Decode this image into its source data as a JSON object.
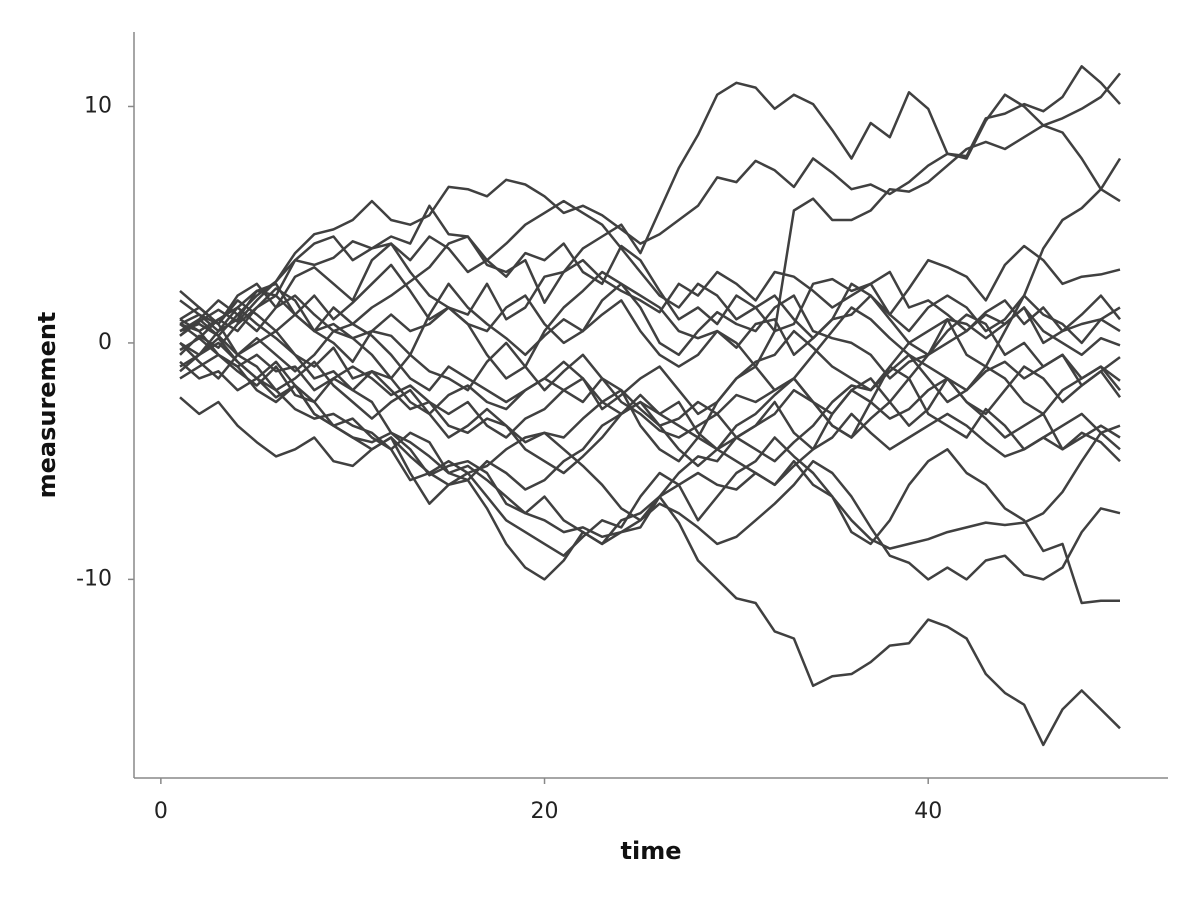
{
  "chart_data": {
    "type": "line",
    "x_label": "time",
    "y_label": "measurement",
    "color": "#404040",
    "xlim": [
      -1.4,
      52.5
    ],
    "xticks": [
      0,
      20,
      40
    ],
    "ylim": [
      -18.4,
      13.15
    ],
    "yticks": [
      -10,
      0,
      10
    ],
    "grid": false,
    "x": [
      1,
      2,
      3,
      4,
      5,
      6,
      7,
      8,
      9,
      10,
      11,
      12,
      13,
      14,
      15,
      16,
      17,
      18,
      19,
      20,
      21,
      22,
      23,
      24,
      25,
      26,
      27,
      28,
      29,
      30,
      31,
      32,
      33,
      34,
      35,
      36,
      37,
      38,
      39,
      40,
      41,
      42,
      43,
      44,
      45,
      46,
      47,
      48,
      49,
      50
    ],
    "series": [
      {
        "values": [
          0.5,
          0.8,
          0.3,
          1.2,
          2.0,
          2.6,
          3.5,
          3.3,
          3.6,
          4.3,
          4.0,
          4.5,
          4.2,
          5.8,
          4.6,
          4.5,
          3.3,
          3.0,
          3.5,
          1.7,
          3.0,
          4.0,
          4.5,
          5.0,
          3.8,
          5.6,
          7.4,
          8.8,
          10.5,
          11.0,
          10.8,
          9.9,
          10.5,
          10.1,
          9.0,
          7.8,
          9.3,
          8.7,
          10.6,
          9.9,
          8.0,
          7.9,
          9.5,
          9.7,
          10.1,
          9.8,
          10.4,
          11.7,
          11.0,
          10.1
        ]
      },
      {
        "values": [
          -1.0,
          -0.5,
          0.2,
          -0.8,
          -1.5,
          -2.3,
          -1.8,
          -3.0,
          -3.5,
          -4.0,
          -4.2,
          -3.8,
          -4.5,
          -5.6,
          -5.2,
          -5.0,
          -5.5,
          -6.8,
          -7.2,
          -7.5,
          -8.0,
          -7.8,
          -8.2,
          -8.0,
          -7.5,
          -6.5,
          -7.6,
          -9.2,
          -10.0,
          -10.8,
          -11.0,
          -12.2,
          -12.5,
          -14.5,
          -14.1,
          -14.0,
          -13.5,
          -12.8,
          -12.7,
          -11.7,
          -12.0,
          -12.5,
          -14.0,
          -14.8,
          -15.3,
          -17.0,
          -15.5,
          -14.7,
          -15.5,
          -16.3
        ]
      },
      {
        "values": [
          0.8,
          0.5,
          1.0,
          1.5,
          0.8,
          0.2,
          -0.5,
          -1.5,
          -1.2,
          -2.0,
          -2.5,
          -3.8,
          -4.2,
          -4.8,
          -5.5,
          -5.2,
          -5.8,
          -6.5,
          -7.2,
          -6.5,
          -7.5,
          -8.0,
          -8.5,
          -8.0,
          -7.8,
          -6.5,
          -6.0,
          -5.5,
          -6.0,
          -6.2,
          -5.5,
          -6.0,
          -5.0,
          -6.0,
          -6.5,
          -7.5,
          -8.3,
          -8.7,
          -8.5,
          -8.3,
          -8.0,
          -7.8,
          -7.6,
          -7.7,
          -7.6,
          -7.2,
          -6.3,
          -5.0,
          -3.8,
          -3.5
        ]
      },
      {
        "values": [
          0.0,
          -0.5,
          0.5,
          1.0,
          2.2,
          2.5,
          1.2,
          0.5,
          1.5,
          0.8,
          0.3,
          -0.5,
          -1.5,
          -2.0,
          -1.0,
          -1.5,
          -2.0,
          -2.5,
          -2.0,
          -1.5,
          -2.0,
          -2.5,
          -1.5,
          -2.5,
          -3.0,
          -3.7,
          -4.0,
          -3.5,
          -3.0,
          -2.2,
          -2.5,
          -2.0,
          -1.5,
          -2.5,
          -3.5,
          -4.0,
          -2.5,
          -1.0,
          0.0,
          -0.5,
          1.0,
          -0.5,
          -1.0,
          0.5,
          2.0,
          4.0,
          5.2,
          5.7,
          6.5,
          7.8
        ]
      },
      {
        "values": [
          1.0,
          1.5,
          0.8,
          1.8,
          1.2,
          0.5,
          -0.5,
          -1.0,
          -0.2,
          -1.5,
          -1.2,
          -2.0,
          -2.8,
          -2.5,
          -3.5,
          -3.8,
          -3.2,
          -3.5,
          -4.2,
          -3.8,
          -4.0,
          -3.2,
          -2.5,
          -2.0,
          -3.5,
          -4.5,
          -5.0,
          -4.0,
          -2.5,
          -1.5,
          -1.0,
          0.5,
          5.6,
          6.1,
          5.2,
          5.2,
          5.6,
          6.5,
          6.4,
          6.8,
          7.5,
          8.2,
          8.5,
          8.2,
          8.7,
          9.2,
          8.9,
          7.8,
          6.5,
          6.0
        ]
      },
      {
        "values": [
          0.3,
          0.9,
          1.4,
          0.9,
          1.8,
          2.6,
          3.8,
          4.6,
          4.8,
          5.2,
          6.0,
          5.2,
          5.0,
          5.4,
          6.6,
          6.5,
          6.2,
          6.9,
          6.7,
          6.2,
          5.5,
          5.8,
          5.4,
          4.8,
          4.2,
          4.6,
          5.2,
          5.8,
          7.0,
          6.8,
          7.7,
          7.3,
          6.6,
          7.8,
          7.2,
          6.5,
          6.7,
          6.3,
          6.8,
          7.5,
          8.0,
          7.8,
          9.4,
          10.5,
          10.0,
          9.2,
          9.5,
          9.9,
          10.4,
          11.4
        ]
      },
      {
        "values": [
          0.8,
          0.2,
          1.0,
          0.5,
          1.5,
          2.0,
          1.2,
          2.0,
          1.0,
          1.7,
          2.5,
          3.3,
          2.2,
          1.0,
          1.5,
          1.2,
          2.5,
          1.0,
          1.5,
          2.8,
          3.0,
          3.5,
          2.7,
          2.2,
          1.8,
          1.3,
          2.5,
          2.0,
          3.0,
          2.5,
          1.8,
          3.0,
          2.8,
          2.2,
          1.5,
          2.0,
          2.5,
          1.2,
          2.3,
          3.5,
          3.2,
          2.8,
          1.8,
          3.3,
          4.1,
          3.5,
          2.5,
          2.8,
          2.9,
          3.1
        ]
      },
      {
        "values": [
          1.8,
          1.2,
          0.8,
          2.0,
          2.5,
          1.5,
          2.0,
          1.2,
          0.5,
          0.8,
          1.5,
          2.0,
          2.6,
          3.2,
          4.2,
          4.5,
          3.5,
          2.8,
          3.8,
          3.5,
          4.2,
          3.0,
          2.5,
          4.1,
          3.5,
          2.2,
          1.0,
          1.5,
          0.8,
          2.0,
          1.5,
          0.5,
          0.8,
          2.5,
          2.7,
          2.2,
          2.5,
          3.0,
          1.5,
          1.8,
          1.2,
          0.5,
          1.3,
          1.8,
          0.8,
          1.5,
          0.5,
          0.8,
          1.0,
          1.5
        ]
      },
      {
        "values": [
          -0.5,
          0.3,
          -0.2,
          0.8,
          1.5,
          2.3,
          1.8,
          0.5,
          0.0,
          -0.8,
          0.5,
          0.3,
          -0.5,
          1.2,
          2.5,
          1.5,
          0.8,
          0.2,
          -0.5,
          0.3,
          1.0,
          0.5,
          1.8,
          2.5,
          2.0,
          1.5,
          0.5,
          0.2,
          0.5,
          -0.2,
          0.8,
          1.0,
          -0.5,
          0.2,
          1.0,
          1.2,
          2.0,
          1.0,
          0.0,
          0.5,
          1.0,
          0.8,
          0.2,
          0.8,
          1.5,
          0.0,
          0.5,
          1.2,
          2.0,
          1.0
        ]
      },
      {
        "values": [
          0.5,
          1.0,
          0.3,
          -0.5,
          0.0,
          0.5,
          1.2,
          0.5,
          0.8,
          0.2,
          -0.5,
          -1.5,
          -0.5,
          -1.2,
          -1.5,
          -2.0,
          -0.8,
          0.0,
          -1.0,
          0.5,
          1.5,
          2.2,
          3.0,
          2.5,
          1.5,
          0.0,
          -0.5,
          0.5,
          1.3,
          0.8,
          0.5,
          1.5,
          2.0,
          0.5,
          0.2,
          0.0,
          -0.5,
          -1.5,
          -0.8,
          -0.5,
          0.0,
          0.5,
          1.2,
          0.8,
          1.5,
          0.5,
          0.0,
          -0.5,
          0.2,
          -0.1
        ]
      },
      {
        "values": [
          -1.5,
          -1.0,
          -0.5,
          -1.2,
          -1.8,
          -1.0,
          -2.2,
          -2.5,
          -1.5,
          -2.0,
          -1.2,
          -1.5,
          -2.5,
          -3.0,
          -2.2,
          -1.8,
          -2.5,
          -2.8,
          -2.0,
          -1.5,
          -0.8,
          -1.5,
          -2.8,
          -2.2,
          -1.5,
          -1.0,
          -2.0,
          -3.0,
          -2.5,
          -1.5,
          -0.8,
          -0.5,
          0.5,
          -0.2,
          -1.0,
          -1.5,
          -2.0,
          -1.2,
          -0.5,
          -1.0,
          -1.5,
          -2.0,
          -1.2,
          -0.8,
          -1.5,
          -1.0,
          -0.5,
          -1.8,
          -1.2,
          -0.6
        ]
      },
      {
        "values": [
          0.0,
          -0.8,
          -1.5,
          -0.5,
          0.2,
          -0.5,
          -1.2,
          -0.5,
          0.5,
          0.2,
          0.5,
          1.2,
          0.5,
          0.8,
          1.5,
          0.8,
          0.5,
          1.5,
          2.0,
          0.8,
          0.0,
          0.5,
          1.2,
          1.8,
          0.5,
          -0.5,
          -1.0,
          -0.5,
          0.5,
          0.0,
          -1.0,
          -2.0,
          -1.5,
          -0.5,
          0.5,
          1.5,
          1.0,
          0.2,
          -0.5,
          -1.5,
          -2.5,
          -2.0,
          -1.0,
          -1.5,
          -2.5,
          -3.0,
          -2.0,
          -1.5,
          -1.0,
          -1.6
        ]
      },
      {
        "values": [
          2.2,
          1.5,
          0.8,
          -0.5,
          -1.0,
          -2.0,
          -1.5,
          -0.8,
          -1.8,
          -2.5,
          -3.2,
          -2.5,
          -2.0,
          -3.0,
          -4.0,
          -3.5,
          -2.8,
          -3.5,
          -4.5,
          -5.0,
          -5.5,
          -4.8,
          -4.0,
          -3.0,
          -2.5,
          -3.5,
          -4.5,
          -5.2,
          -4.5,
          -4.0,
          -3.5,
          -2.5,
          -3.8,
          -4.5,
          -3.0,
          -2.0,
          -1.5,
          -2.5,
          -3.5,
          -2.8,
          -1.5,
          -2.5,
          -3.0,
          -2.0,
          -1.0,
          -1.5,
          -2.5,
          -1.8,
          -1.2,
          -2.3
        ]
      },
      {
        "values": [
          0.3,
          1.0,
          1.8,
          1.2,
          0.5,
          1.5,
          2.8,
          3.2,
          2.5,
          1.8,
          3.5,
          4.2,
          3.0,
          2.0,
          1.5,
          0.8,
          -0.5,
          -1.5,
          -1.0,
          -2.0,
          -1.2,
          -0.5,
          -1.5,
          -2.0,
          -2.8,
          -3.5,
          -3.2,
          -2.5,
          -3.0,
          -4.0,
          -4.5,
          -5.0,
          -4.2,
          -3.5,
          -2.5,
          -1.8,
          -2.0,
          -1.0,
          -1.5,
          -3.0,
          -3.5,
          -4.0,
          -2.8,
          -3.5,
          -4.5,
          -4.0,
          -3.5,
          -3.0,
          -3.8,
          -4.5
        ]
      },
      {
        "values": [
          -0.8,
          -1.5,
          -1.2,
          -2.0,
          -1.5,
          -0.8,
          -1.8,
          -3.0,
          -3.5,
          -3.2,
          -4.0,
          -4.5,
          -3.8,
          -4.2,
          -5.5,
          -5.8,
          -5.0,
          -5.5,
          -6.2,
          -5.8,
          -5.0,
          -4.5,
          -3.5,
          -3.0,
          -2.5,
          -3.0,
          -3.5,
          -4.0,
          -4.5,
          -5.0,
          -5.5,
          -6.0,
          -5.2,
          -4.5,
          -4.0,
          -3.0,
          -3.8,
          -4.5,
          -4.0,
          -3.5,
          -3.0,
          -3.5,
          -4.2,
          -4.8,
          -4.5,
          -4.0,
          -4.5,
          -3.8,
          -4.2,
          -5.0
        ]
      },
      {
        "values": [
          -2.3,
          -3.0,
          -2.5,
          -3.5,
          -4.2,
          -4.8,
          -4.5,
          -4.0,
          -5.0,
          -5.2,
          -4.5,
          -4.0,
          -4.8,
          -5.5,
          -5.0,
          -5.5,
          -5.2,
          -4.5,
          -4.0,
          -3.8,
          -4.5,
          -5.2,
          -6.0,
          -7.0,
          -7.5,
          -6.8,
          -7.2,
          -7.8,
          -8.5,
          -8.2,
          -7.5,
          -6.8,
          -6.0,
          -5.0,
          -5.5,
          -6.5,
          -7.8,
          -9.0,
          -9.3,
          -10.0,
          -9.5,
          -10.0,
          -9.2,
          -9.0,
          -9.8,
          -10.0,
          -9.5,
          -8.0,
          -7.0,
          -7.2
        ]
      },
      {
        "values": [
          1.0,
          0.5,
          -0.5,
          -1.0,
          -2.0,
          -2.5,
          -1.8,
          -2.5,
          -3.5,
          -4.0,
          -4.5,
          -4.0,
          -5.5,
          -6.8,
          -6.0,
          -5.5,
          -6.5,
          -7.5,
          -8.0,
          -8.5,
          -9.0,
          -8.2,
          -7.5,
          -7.8,
          -6.5,
          -5.5,
          -6.0,
          -7.5,
          -6.5,
          -5.5,
          -5.0,
          -4.0,
          -4.8,
          -5.5,
          -6.5,
          -8.0,
          -8.5,
          -7.5,
          -6.0,
          -5.0,
          -4.5,
          -5.5,
          -6.0,
          -7.0,
          -7.5,
          -8.8,
          -8.5,
          -11.0,
          -10.9,
          -10.9
        ]
      },
      {
        "values": [
          -1.2,
          -0.5,
          0.0,
          -0.8,
          -1.5,
          -2.0,
          -2.8,
          -3.2,
          -3.0,
          -3.5,
          -3.8,
          -4.5,
          -5.8,
          -5.5,
          -6.0,
          -5.8,
          -7.0,
          -8.5,
          -9.5,
          -10.0,
          -9.2,
          -8.0,
          -8.5,
          -7.5,
          -7.2,
          -6.5,
          -5.5,
          -4.8,
          -5.0,
          -4.0,
          -3.5,
          -3.0,
          -2.0,
          -2.5,
          -3.5,
          -4.0,
          -3.2,
          -2.5,
          -1.5,
          -0.5,
          0.5,
          1.2,
          0.8,
          -0.5,
          0.0,
          -1.0,
          -0.5,
          -1.5,
          -1.0,
          -2.0
        ]
      },
      {
        "values": [
          0.8,
          1.2,
          0.5,
          1.5,
          2.2,
          2.0,
          3.5,
          4.2,
          4.5,
          3.5,
          4.0,
          4.2,
          3.5,
          4.5,
          4.0,
          3.0,
          3.5,
          4.2,
          5.0,
          5.5,
          6.0,
          5.5,
          5.0,
          4.0,
          3.0,
          2.0,
          1.5,
          2.5,
          2.0,
          1.0,
          1.5,
          2.0,
          1.0,
          0.2,
          1.0,
          2.5,
          2.0,
          1.2,
          0.5,
          1.5,
          2.0,
          1.5,
          0.5,
          1.0,
          2.0,
          1.2,
          0.8,
          0.0,
          1.0,
          0.5
        ]
      },
      {
        "values": [
          -0.3,
          0.2,
          -0.5,
          -1.0,
          -0.5,
          -1.2,
          -1.0,
          -2.0,
          -1.5,
          -1.0,
          -1.5,
          -2.2,
          -1.8,
          -2.5,
          -3.0,
          -2.5,
          -3.5,
          -4.0,
          -3.2,
          -2.8,
          -2.0,
          -1.5,
          -2.5,
          -3.0,
          -2.2,
          -3.0,
          -2.5,
          -3.8,
          -4.5,
          -3.5,
          -3.0,
          -2.2,
          -1.5,
          -2.5,
          -3.0,
          -2.0,
          -2.5,
          -3.2,
          -2.8,
          -2.0,
          -1.5,
          -2.5,
          -3.2,
          -4.0,
          -3.5,
          -3.0,
          -4.5,
          -4.0,
          -3.5,
          -4.0
        ]
      }
    ]
  }
}
